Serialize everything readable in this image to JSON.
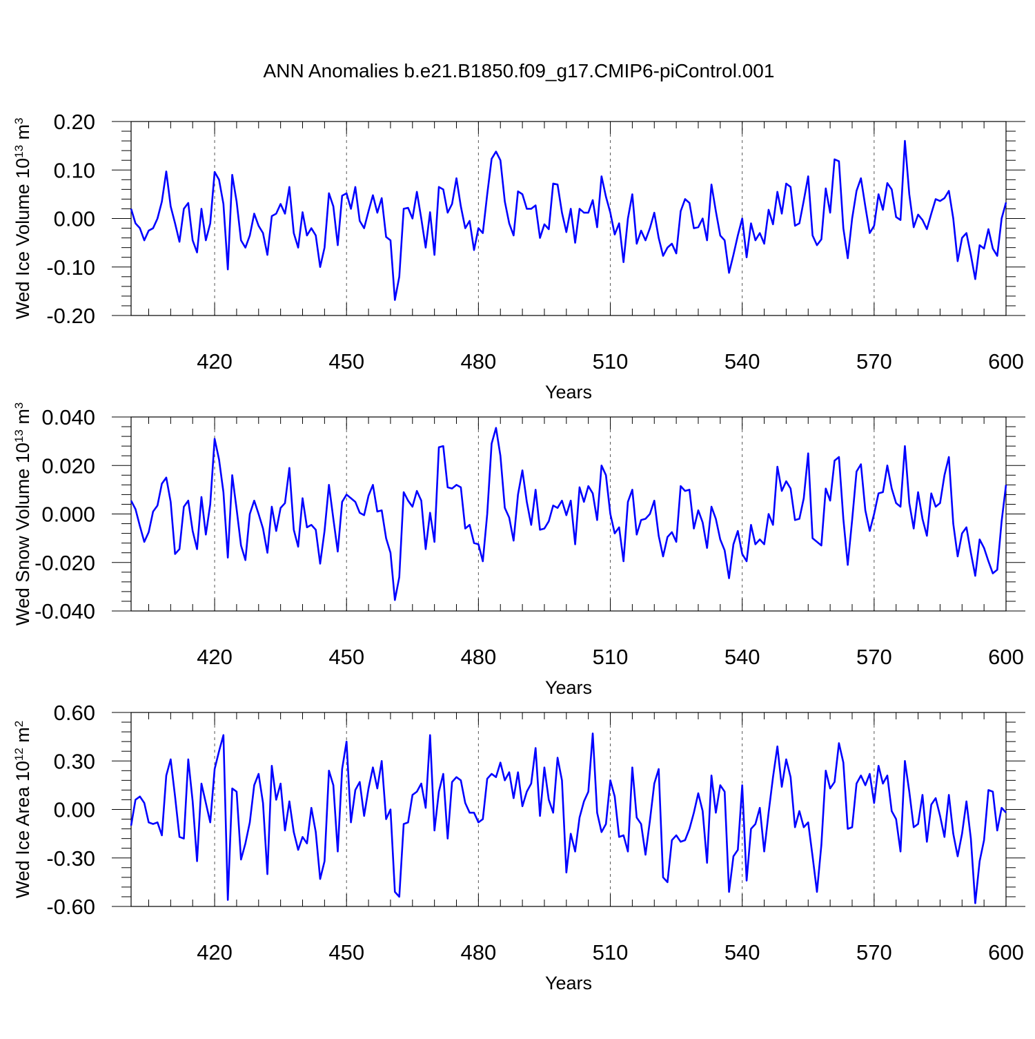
{
  "title": "ANN Anomalies b.e21.B1850.f09_g17.CMIP6-piControl.001",
  "chart_data": [
    {
      "type": "line",
      "xlabel": "Years",
      "ylabel": "Wed Ice Volume 10",
      "ylabel_exp": "13",
      "ylabel_unit": " m",
      "ylabel_unit_exp": "3",
      "xlim": [
        401,
        600
      ],
      "ylim": [
        -0.2,
        0.2
      ],
      "xticks": [
        420,
        450,
        480,
        510,
        540,
        570,
        600
      ],
      "yticks": [
        -0.2,
        -0.1,
        0.0,
        0.1,
        0.2
      ],
      "ytick_labels": [
        "-0.20",
        "-0.10",
        "0.00",
        "0.10",
        "0.20"
      ],
      "grid_x": true,
      "line_color": "#0000ff",
      "x_start": 401,
      "values": [
        0.02,
        -0.01,
        -0.02,
        -0.045,
        -0.025,
        -0.02,
        0.0,
        0.035,
        0.097,
        0.025,
        -0.01,
        -0.048,
        0.02,
        0.032,
        -0.045,
        -0.07,
        0.02,
        -0.045,
        -0.01,
        0.096,
        0.08,
        0.03,
        -0.105,
        0.09,
        0.035,
        -0.045,
        -0.06,
        -0.035,
        0.01,
        -0.015,
        -0.03,
        -0.075,
        0.005,
        0.01,
        0.03,
        0.01,
        0.065,
        -0.03,
        -0.06,
        0.013,
        -0.035,
        -0.02,
        -0.035,
        -0.1,
        -0.06,
        0.052,
        0.025,
        -0.055,
        0.047,
        0.052,
        0.02,
        0.065,
        -0.005,
        -0.02,
        0.015,
        0.048,
        0.012,
        0.042,
        -0.038,
        -0.045,
        -0.168,
        -0.12,
        0.02,
        0.022,
        0.0,
        0.055,
        0.0,
        -0.06,
        0.013,
        -0.075,
        0.065,
        0.06,
        0.012,
        0.03,
        0.083,
        0.025,
        -0.02,
        -0.005,
        -0.065,
        -0.02,
        -0.03,
        0.05,
        0.123,
        0.138,
        0.12,
        0.035,
        -0.01,
        -0.035,
        0.056,
        0.05,
        0.02,
        0.02,
        0.027,
        -0.04,
        -0.012,
        -0.022,
        0.072,
        0.07,
        0.012,
        -0.028,
        0.02,
        -0.05,
        0.02,
        0.012,
        0.012,
        0.038,
        -0.018,
        0.087,
        0.045,
        0.012,
        -0.033,
        -0.01,
        -0.09,
        0.0,
        0.05,
        -0.052,
        -0.025,
        -0.045,
        -0.02,
        0.012,
        -0.04,
        -0.077,
        -0.06,
        -0.052,
        -0.072,
        0.015,
        0.04,
        0.032,
        -0.02,
        -0.018,
        0.0,
        -0.045,
        0.07,
        0.015,
        -0.035,
        -0.045,
        -0.112,
        -0.075,
        -0.035,
        0.0,
        -0.08,
        -0.01,
        -0.045,
        -0.03,
        -0.052,
        0.018,
        -0.012,
        0.055,
        0.01,
        0.072,
        0.065,
        -0.015,
        -0.01,
        0.037,
        0.087,
        -0.035,
        -0.055,
        -0.043,
        0.062,
        0.012,
        0.122,
        0.118,
        -0.02,
        -0.082,
        0.0,
        0.057,
        0.083,
        0.025,
        -0.03,
        -0.015,
        0.05,
        0.018,
        0.073,
        0.06,
        0.003,
        -0.003,
        0.16,
        0.05,
        -0.018,
        0.008,
        -0.003,
        -0.022,
        0.01,
        0.04,
        0.036,
        0.042,
        0.057,
        0.0,
        -0.088,
        -0.04,
        -0.03,
        -0.075,
        -0.125,
        -0.055,
        -0.062,
        -0.022,
        -0.062,
        -0.077,
        0.0,
        0.033
      ]
    },
    {
      "type": "line",
      "xlabel": "Years",
      "ylabel": "Wed Snow Volume 10",
      "ylabel_exp": "13",
      "ylabel_unit": " m",
      "ylabel_unit_exp": "3",
      "xlim": [
        401,
        600
      ],
      "ylim": [
        -0.04,
        0.04
      ],
      "xticks": [
        420,
        450,
        480,
        510,
        540,
        570,
        600
      ],
      "yticks": [
        -0.04,
        -0.02,
        0.0,
        0.02,
        0.04
      ],
      "ytick_labels": [
        "-0.040",
        "-0.020",
        "0.000",
        "0.020",
        "0.040"
      ],
      "grid_x": true,
      "line_color": "#0000ff",
      "x_start": 401,
      "values": [
        0.0055,
        0.002,
        -0.005,
        -0.0115,
        -0.0075,
        0.001,
        0.0035,
        0.0125,
        0.015,
        0.005,
        -0.0165,
        -0.0145,
        0.003,
        0.0055,
        -0.007,
        -0.0145,
        0.007,
        -0.0085,
        0.004,
        0.031,
        0.0225,
        0.009,
        -0.018,
        0.016,
        0.002,
        -0.013,
        -0.019,
        0.0,
        0.0055,
        0.0,
        -0.006,
        -0.016,
        0.003,
        -0.007,
        0.0025,
        0.0045,
        0.019,
        -0.0065,
        -0.0135,
        0.0065,
        -0.0055,
        -0.0045,
        -0.0065,
        -0.0205,
        -0.007,
        0.012,
        -0.002,
        -0.0155,
        0.005,
        0.008,
        0.0065,
        0.005,
        0.0005,
        -0.0005,
        0.0075,
        0.012,
        0.001,
        0.0015,
        -0.01,
        -0.016,
        -0.0355,
        -0.026,
        0.009,
        0.0055,
        0.003,
        0.0095,
        0.0055,
        -0.0145,
        0.0005,
        -0.0115,
        0.0275,
        0.028,
        0.011,
        0.0105,
        0.012,
        0.011,
        -0.006,
        -0.0045,
        -0.012,
        -0.0125,
        -0.0195,
        0.0,
        0.029,
        0.0355,
        0.024,
        0.0025,
        -0.0015,
        -0.011,
        0.008,
        0.018,
        0.005,
        -0.0045,
        0.01,
        -0.0065,
        -0.006,
        -0.003,
        0.0035,
        0.0025,
        0.0055,
        -0.0005,
        0.0055,
        -0.0125,
        0.011,
        0.005,
        0.0115,
        0.0085,
        -0.0025,
        0.02,
        0.016,
        0.0,
        -0.008,
        -0.0055,
        -0.0195,
        0.005,
        0.01,
        -0.0085,
        -0.0025,
        -0.002,
        0.0,
        0.0055,
        -0.009,
        -0.0175,
        -0.0095,
        -0.0075,
        -0.0115,
        0.0115,
        0.0095,
        0.01,
        -0.006,
        0.0015,
        -0.0035,
        -0.014,
        0.003,
        -0.002,
        -0.0105,
        -0.015,
        -0.0265,
        -0.0125,
        -0.007,
        -0.0165,
        -0.0195,
        -0.0045,
        -0.0125,
        -0.0105,
        -0.0125,
        0.0,
        -0.0045,
        0.0195,
        0.0095,
        0.0135,
        0.0105,
        -0.0025,
        -0.002,
        0.0065,
        0.025,
        -0.01,
        -0.0115,
        -0.013,
        0.0105,
        0.0055,
        0.022,
        0.0235,
        -0.002,
        -0.021,
        -0.0025,
        0.0175,
        0.0205,
        0.0015,
        -0.007,
        0.0,
        0.0085,
        0.009,
        0.02,
        0.0105,
        0.0045,
        0.003,
        0.028,
        0.0045,
        -0.006,
        0.009,
        -0.002,
        -0.009,
        0.0085,
        0.003,
        0.0045,
        0.016,
        0.0235,
        -0.004,
        -0.0175,
        -0.008,
        -0.0055,
        -0.016,
        -0.0255,
        -0.0105,
        -0.014,
        -0.0195,
        -0.0245,
        -0.023,
        -0.003,
        0.012
      ]
    },
    {
      "type": "line",
      "xlabel": "Years",
      "ylabel": "Wed Ice Area 10",
      "ylabel_exp": "12",
      "ylabel_unit": " m",
      "ylabel_unit_exp": "2",
      "xlim": [
        401,
        600
      ],
      "ylim": [
        -0.6,
        0.6
      ],
      "xticks": [
        420,
        450,
        480,
        510,
        540,
        570,
        600
      ],
      "yticks": [
        -0.6,
        -0.3,
        0.0,
        0.3,
        0.6
      ],
      "ytick_labels": [
        "-0.60",
        "-0.30",
        "0.00",
        "0.30",
        "0.60"
      ],
      "grid_x": true,
      "line_color": "#0000ff",
      "x_start": 401,
      "values": [
        -0.1,
        0.06,
        0.08,
        0.04,
        -0.08,
        -0.09,
        -0.08,
        -0.16,
        0.21,
        0.31,
        0.08,
        -0.17,
        -0.18,
        0.31,
        0.05,
        -0.32,
        0.16,
        0.04,
        -0.08,
        0.25,
        0.36,
        0.46,
        -0.56,
        0.13,
        0.11,
        -0.31,
        -0.21,
        -0.08,
        0.15,
        0.22,
        0.04,
        -0.4,
        0.27,
        0.06,
        0.16,
        -0.13,
        0.05,
        -0.14,
        -0.25,
        -0.17,
        -0.21,
        0.01,
        -0.14,
        -0.43,
        -0.32,
        0.24,
        0.15,
        -0.26,
        0.25,
        0.42,
        -0.08,
        0.12,
        0.17,
        -0.04,
        0.13,
        0.26,
        0.13,
        0.3,
        -0.06,
        0.0,
        -0.51,
        -0.54,
        -0.09,
        -0.08,
        0.09,
        0.11,
        0.16,
        0.01,
        0.46,
        -0.13,
        0.11,
        0.22,
        -0.18,
        0.17,
        0.2,
        0.18,
        0.04,
        -0.02,
        -0.02,
        -0.08,
        -0.06,
        0.19,
        0.22,
        0.2,
        0.29,
        0.18,
        0.23,
        0.07,
        0.23,
        0.02,
        0.11,
        0.16,
        0.38,
        -0.04,
        0.26,
        0.06,
        -0.02,
        0.32,
        0.18,
        -0.39,
        -0.15,
        -0.26,
        -0.05,
        0.05,
        0.11,
        0.47,
        -0.02,
        -0.14,
        -0.09,
        0.18,
        0.08,
        -0.17,
        -0.16,
        -0.26,
        0.26,
        -0.05,
        -0.09,
        -0.28,
        -0.07,
        0.16,
        0.25,
        -0.42,
        -0.45,
        -0.19,
        -0.16,
        -0.2,
        -0.19,
        -0.12,
        -0.02,
        0.1,
        -0.01,
        -0.33,
        0.21,
        -0.02,
        0.15,
        0.11,
        -0.51,
        -0.29,
        -0.25,
        0.15,
        -0.44,
        -0.12,
        -0.09,
        0.01,
        -0.26,
        -0.02,
        0.2,
        0.39,
        0.14,
        0.31,
        0.2,
        -0.11,
        -0.01,
        -0.11,
        -0.08,
        -0.29,
        -0.51,
        -0.22,
        0.24,
        0.13,
        0.17,
        0.41,
        0.29,
        -0.12,
        -0.11,
        0.16,
        0.21,
        0.15,
        0.22,
        0.04,
        0.27,
        0.16,
        0.21,
        -0.01,
        -0.06,
        -0.26,
        0.3,
        0.11,
        -0.11,
        -0.09,
        0.09,
        -0.2,
        0.03,
        0.07,
        -0.04,
        -0.17,
        0.09,
        -0.15,
        -0.29,
        -0.15,
        0.05,
        -0.18,
        -0.58,
        -0.32,
        -0.19,
        0.12,
        0.11,
        -0.13,
        0.01,
        -0.02
      ]
    }
  ]
}
